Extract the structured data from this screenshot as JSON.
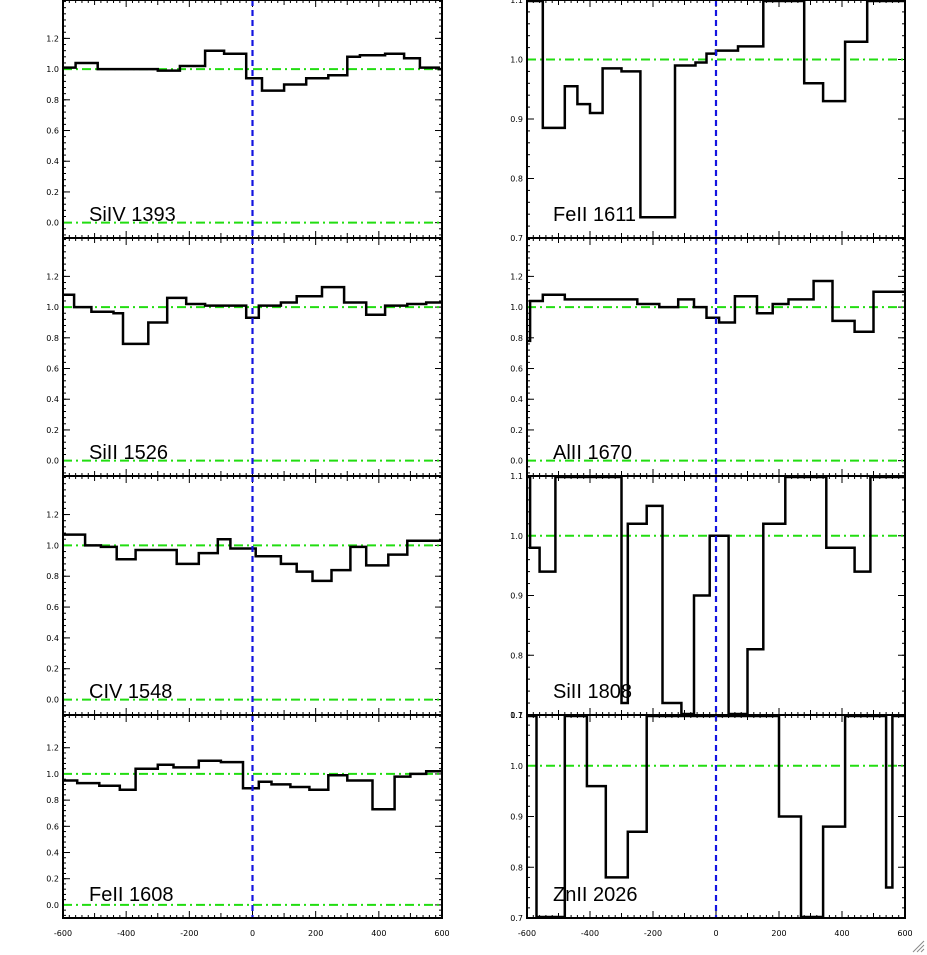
{
  "chart_data": {
    "type": "line",
    "xlim": [
      -600,
      600
    ],
    "x_ticks": [
      -600,
      -400,
      -200,
      0,
      200,
      400,
      600
    ],
    "x_tick_labels": [
      "-600",
      "-400",
      "-200",
      "0",
      "200",
      "400",
      "600"
    ],
    "reference_velocity": 0,
    "colors": {
      "spectrum": "#000000",
      "continuum_and_zero": "#22dd11",
      "velocity_zero": "#1414e0"
    },
    "panels": [
      {
        "id": "p1",
        "label": "SiIV 1393",
        "column": "left",
        "row": 0,
        "ylim": [
          -0.1,
          1.45
        ],
        "reference_levels": [
          0.0,
          1.0
        ],
        "y_ticks": [
          0.0,
          0.2,
          0.4,
          0.6,
          0.8,
          1.0,
          1.2
        ],
        "y_tick_labels": [
          "0.0",
          "0.2",
          "0.4",
          "0.6",
          "0.8",
          "1.0",
          "1.2"
        ],
        "edges": [
          -600,
          -560,
          -490,
          -430,
          -370,
          -300,
          -230,
          -150,
          -90,
          -20,
          30,
          100,
          170,
          240,
          300,
          340,
          420,
          480,
          530,
          590,
          600
        ],
        "values": [
          1.01,
          1.04,
          1.0,
          1.0,
          1.0,
          0.99,
          1.02,
          1.12,
          1.1,
          0.94,
          0.86,
          0.9,
          0.94,
          0.96,
          1.08,
          1.09,
          1.1,
          1.07,
          1.01,
          1.0
        ]
      },
      {
        "id": "p2",
        "label": "FeII 1611",
        "column": "right",
        "row": 0,
        "ylim": [
          0.7,
          1.1
        ],
        "reference_levels": [
          1.0
        ],
        "y_ticks": [
          0.7,
          0.8,
          0.9,
          1.0,
          1.1
        ],
        "y_tick_labels": [
          "0.7",
          "0.8",
          "0.9",
          "1.0",
          "1.1"
        ],
        "edges": [
          -600,
          -580,
          -550,
          -480,
          -440,
          -400,
          -360,
          -300,
          -240,
          -130,
          -65,
          -30,
          0,
          70,
          150,
          280,
          340,
          410,
          480,
          550,
          600
        ],
        "values": [
          1.12,
          1.12,
          0.885,
          0.955,
          0.925,
          0.91,
          0.985,
          0.98,
          0.735,
          0.99,
          0.995,
          1.01,
          1.015,
          1.022,
          1.12,
          0.96,
          0.93,
          1.03,
          1.12,
          1.12
        ]
      },
      {
        "id": "p3",
        "label": "SiII 1526",
        "column": "left",
        "row": 1,
        "ylim": [
          -0.1,
          1.45
        ],
        "reference_levels": [
          0.0,
          1.0
        ],
        "y_ticks": [
          0.0,
          0.2,
          0.4,
          0.6,
          0.8,
          1.0,
          1.2
        ],
        "y_tick_labels": [
          "0.0",
          "0.2",
          "0.4",
          "0.6",
          "0.8",
          "1.0",
          "1.2"
        ],
        "edges": [
          -600,
          -565,
          -510,
          -440,
          -410,
          -330,
          -270,
          -210,
          -150,
          -90,
          -20,
          20,
          90,
          140,
          220,
          290,
          360,
          420,
          490,
          550,
          600
        ],
        "values": [
          1.08,
          1.0,
          0.97,
          0.96,
          0.76,
          0.9,
          1.06,
          1.02,
          1.01,
          1.01,
          0.93,
          1.01,
          1.03,
          1.07,
          1.13,
          1.03,
          0.95,
          1.01,
          1.02,
          1.03
        ]
      },
      {
        "id": "p4",
        "label": "AlII 1670",
        "column": "right",
        "row": 1,
        "ylim": [
          -0.1,
          1.45
        ],
        "reference_levels": [
          0.0,
          1.0
        ],
        "y_ticks": [
          0.0,
          0.2,
          0.4,
          0.6,
          0.8,
          1.0,
          1.2
        ],
        "y_tick_labels": [
          "0.0",
          "0.2",
          "0.4",
          "0.6",
          "0.8",
          "1.0",
          "1.2"
        ],
        "edges": [
          -600,
          -590,
          -550,
          -480,
          -420,
          -350,
          -250,
          -180,
          -120,
          -70,
          -30,
          10,
          60,
          130,
          180,
          230,
          310,
          370,
          440,
          500,
          600
        ],
        "values": [
          0.78,
          1.04,
          1.08,
          1.05,
          1.05,
          1.05,
          1.02,
          1.0,
          1.05,
          1.0,
          0.93,
          0.9,
          1.07,
          0.96,
          1.02,
          1.05,
          1.17,
          0.91,
          0.84,
          1.1
        ]
      },
      {
        "id": "p5",
        "label": "CIV 1548",
        "column": "left",
        "row": 2,
        "ylim": [
          -0.1,
          1.45
        ],
        "reference_levels": [
          0.0,
          1.0
        ],
        "y_ticks": [
          0.0,
          0.2,
          0.4,
          0.6,
          0.8,
          1.0,
          1.2
        ],
        "y_tick_labels": [
          "0.0",
          "0.2",
          "0.4",
          "0.6",
          "0.8",
          "1.0",
          "1.2"
        ],
        "edges": [
          -600,
          -530,
          -480,
          -430,
          -370,
          -300,
          -240,
          -170,
          -110,
          -70,
          10,
          90,
          140,
          190,
          250,
          310,
          360,
          430,
          490,
          550,
          600
        ],
        "values": [
          1.07,
          1.0,
          0.99,
          0.91,
          0.97,
          0.97,
          0.88,
          0.95,
          1.04,
          0.98,
          0.93,
          0.88,
          0.83,
          0.77,
          0.84,
          0.99,
          0.87,
          0.94,
          1.03,
          1.03
        ]
      },
      {
        "id": "p6",
        "label": "SiII 1808",
        "column": "right",
        "row": 2,
        "ylim": [
          0.7,
          1.1
        ],
        "reference_levels": [
          1.0
        ],
        "y_ticks": [
          0.7,
          0.8,
          0.9,
          1.0,
          1.1
        ],
        "y_tick_labels": [
          "0.7",
          "0.8",
          "0.9",
          "1.0",
          "1.1"
        ],
        "edges": [
          -600,
          -590,
          -560,
          -510,
          -470,
          -420,
          -370,
          -300,
          -280,
          -220,
          -170,
          -110,
          -70,
          -20,
          0,
          40,
          100,
          150,
          220,
          290,
          350,
          380,
          440,
          490,
          550,
          600
        ],
        "values": [
          1.12,
          0.98,
          0.94,
          1.12,
          1.12,
          1.12,
          1.12,
          0.72,
          1.02,
          1.05,
          0.72,
          0.7,
          0.9,
          1.0,
          1.0,
          0.7,
          0.81,
          1.02,
          1.12,
          1.12,
          0.98,
          0.98,
          0.94,
          1.1,
          1.1
        ]
      },
      {
        "id": "p7",
        "label": "FeII 1608",
        "column": "left",
        "row": 3,
        "ylim": [
          -0.1,
          1.45
        ],
        "reference_levels": [
          0.0,
          1.0
        ],
        "y_ticks": [
          0.0,
          0.2,
          0.4,
          0.6,
          0.8,
          1.0,
          1.2
        ],
        "y_tick_labels": [
          "0.0",
          "0.2",
          "0.4",
          "0.6",
          "0.8",
          "1.0",
          "1.2"
        ],
        "edges": [
          -600,
          -555,
          -485,
          -420,
          -370,
          -300,
          -250,
          -170,
          -100,
          -30,
          20,
          60,
          120,
          180,
          240,
          300,
          380,
          450,
          500,
          550,
          600
        ],
        "values": [
          0.95,
          0.93,
          0.91,
          0.88,
          1.04,
          1.07,
          1.05,
          1.1,
          1.09,
          0.89,
          0.94,
          0.92,
          0.9,
          0.88,
          0.99,
          0.95,
          0.73,
          0.98,
          1.0,
          1.02
        ]
      },
      {
        "id": "p8",
        "label": "ZnII 2026",
        "column": "right",
        "row": 3,
        "ylim": [
          0.7,
          1.1
        ],
        "reference_levels": [
          1.0
        ],
        "y_ticks": [
          0.7,
          0.8,
          0.9,
          1.0,
          1.1
        ],
        "y_tick_labels": [
          "0.7",
          "0.8",
          "0.9",
          "1.0",
          "1.1"
        ],
        "edges": [
          -600,
          -570,
          -480,
          -410,
          -350,
          -280,
          -220,
          -150,
          -100,
          -40,
          20,
          80,
          200,
          270,
          340,
          410,
          470,
          540,
          560,
          600
        ],
        "values": [
          1.12,
          0.7,
          1.12,
          0.96,
          0.78,
          0.87,
          1.12,
          1.12,
          1.12,
          1.12,
          1.12,
          1.12,
          0.9,
          0.7,
          0.88,
          1.12,
          1.12,
          0.76,
          1.12
        ]
      }
    ]
  }
}
